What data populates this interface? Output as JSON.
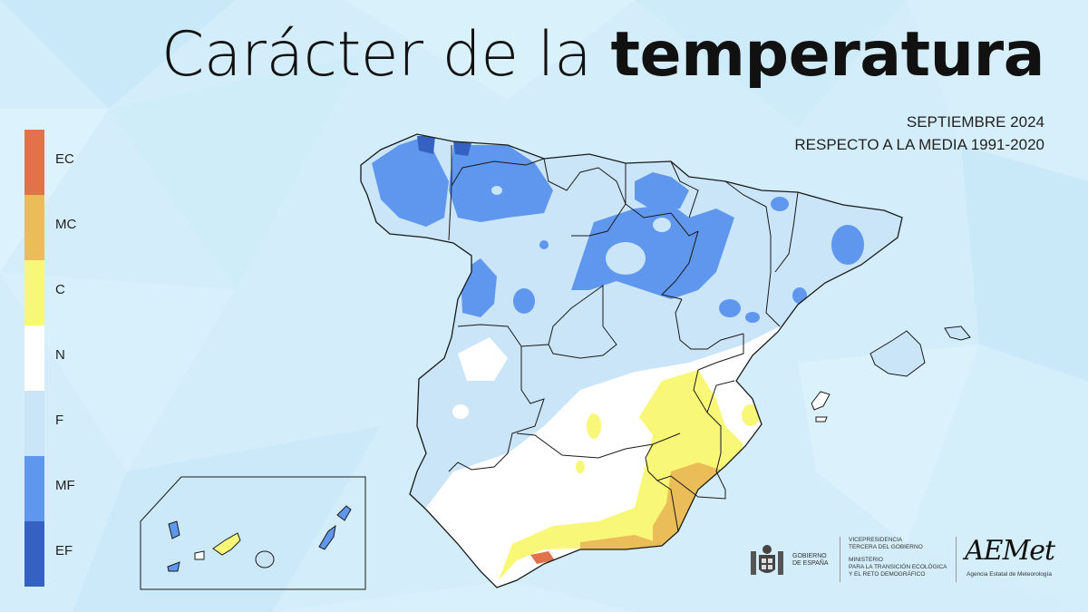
{
  "title": {
    "light": "Carácter de la",
    "bold": "temperatura"
  },
  "subtitle": {
    "line1": "SEPTIEMBRE 2024",
    "line2": "RESPECTO A LA MEDIA 1991-2020"
  },
  "legend": [
    {
      "label": "EC",
      "color": "#e2724a"
    },
    {
      "label": "MC",
      "color": "#ebbd58"
    },
    {
      "label": "C",
      "color": "#f9f778"
    },
    {
      "label": "N",
      "color": "#ffffff"
    },
    {
      "label": "F",
      "color": "#c9e5f7"
    },
    {
      "label": "MF",
      "color": "#5e97ed"
    },
    {
      "label": "EF",
      "color": "#3461c2"
    }
  ],
  "footer": {
    "gov_line1": "GOBIERNO",
    "gov_line2": "DE ESPAÑA",
    "min_line1": "VICEPRESIDENCIA",
    "min_line2": "TERCERA DEL GOBIERNO",
    "min_line3": "MINISTERIO",
    "min_line4": "PARA LA TRANSICIÓN ECOLÓGICA",
    "min_line5": "Y EL RETO DEMOGRÁFICO",
    "logo": "AEMet",
    "agency": "Agencia Estatal de Meteorología"
  }
}
